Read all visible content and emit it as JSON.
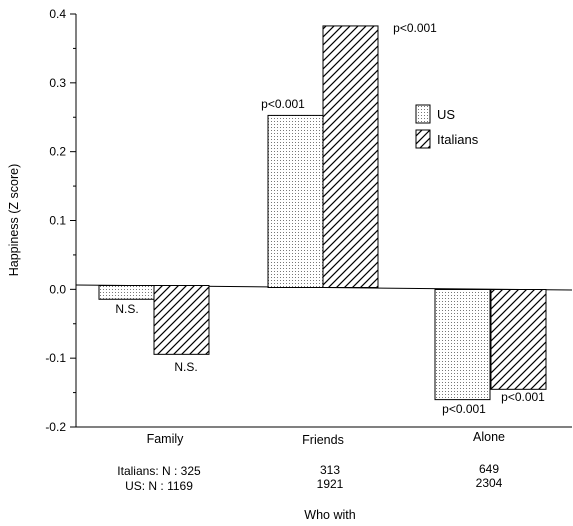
{
  "chart_data": {
    "type": "bar",
    "ylabel": "Happiness (Z score)",
    "xlabel": "Who with",
    "ylim": [
      -0.2,
      0.4
    ],
    "y_ticks": [
      "0.4",
      "0.3",
      "0.2",
      "0.1",
      "0.0",
      "-0.1",
      "-0.2"
    ],
    "y_tick_values": [
      0.4,
      0.3,
      0.2,
      0.1,
      0.0,
      -0.1,
      -0.2
    ],
    "categories": [
      "Family",
      "Friends",
      "Alone"
    ],
    "series": [
      {
        "name": "US",
        "values": [
          -0.02,
          0.25,
          -0.16
        ],
        "pattern": "dots"
      },
      {
        "name": "Italians",
        "values": [
          -0.1,
          0.38,
          -0.145
        ],
        "pattern": "hatch"
      }
    ],
    "annotations": [
      [
        "N.S.",
        "N.S."
      ],
      [
        "p<0.001",
        "p<0.001"
      ],
      [
        "p<0.001",
        "p<0.001"
      ]
    ],
    "sample_sizes": {
      "italians_label": "Italians: N : 325",
      "us_label": "US: N : 1169",
      "italians": [
        "313",
        "649"
      ],
      "us": [
        "1921",
        "2304"
      ]
    },
    "legend_position": "right, upper middle"
  }
}
